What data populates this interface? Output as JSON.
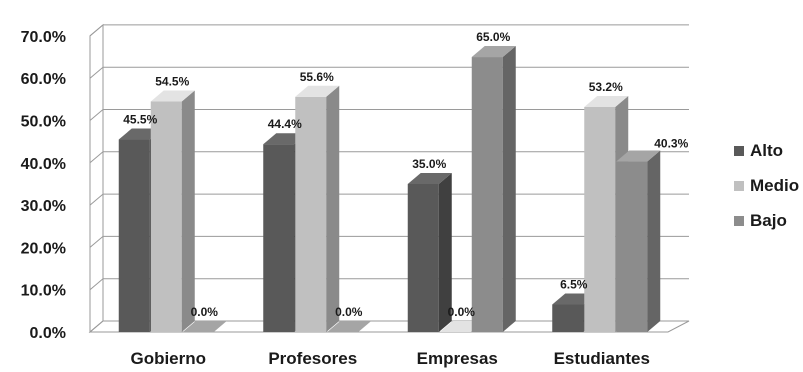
{
  "chart_data": {
    "type": "bar",
    "categories": [
      "Gobierno",
      "Profesores",
      "Empresas",
      "Estudiantes"
    ],
    "series": [
      {
        "name": "Alto",
        "values": [
          45.5,
          44.4,
          35.0,
          6.5
        ],
        "labels": [
          "45.5%",
          "44.4%",
          "35.0%",
          "6.5%"
        ],
        "color": "#595959"
      },
      {
        "name": "Medio",
        "values": [
          54.5,
          55.6,
          0.0,
          53.2
        ],
        "labels": [
          "54.5%",
          "55.6%",
          "0.0%",
          "53.2%"
        ],
        "color": "#c0c0c0"
      },
      {
        "name": "Bajo",
        "values": [
          0.0,
          0.0,
          65.0,
          40.3
        ],
        "labels": [
          "0.0%",
          "0.0%",
          "65.0%",
          "40.3%"
        ],
        "color": "#8c8c8c"
      }
    ],
    "y_ticks": [
      "0.0%",
      "10.0%",
      "20.0%",
      "30.0%",
      "40.0%",
      "50.0%",
      "60.0%",
      "70.0%"
    ],
    "ylim": [
      0,
      70
    ],
    "legend_position": "right",
    "grid": true,
    "style": "3d-clustered-column"
  }
}
